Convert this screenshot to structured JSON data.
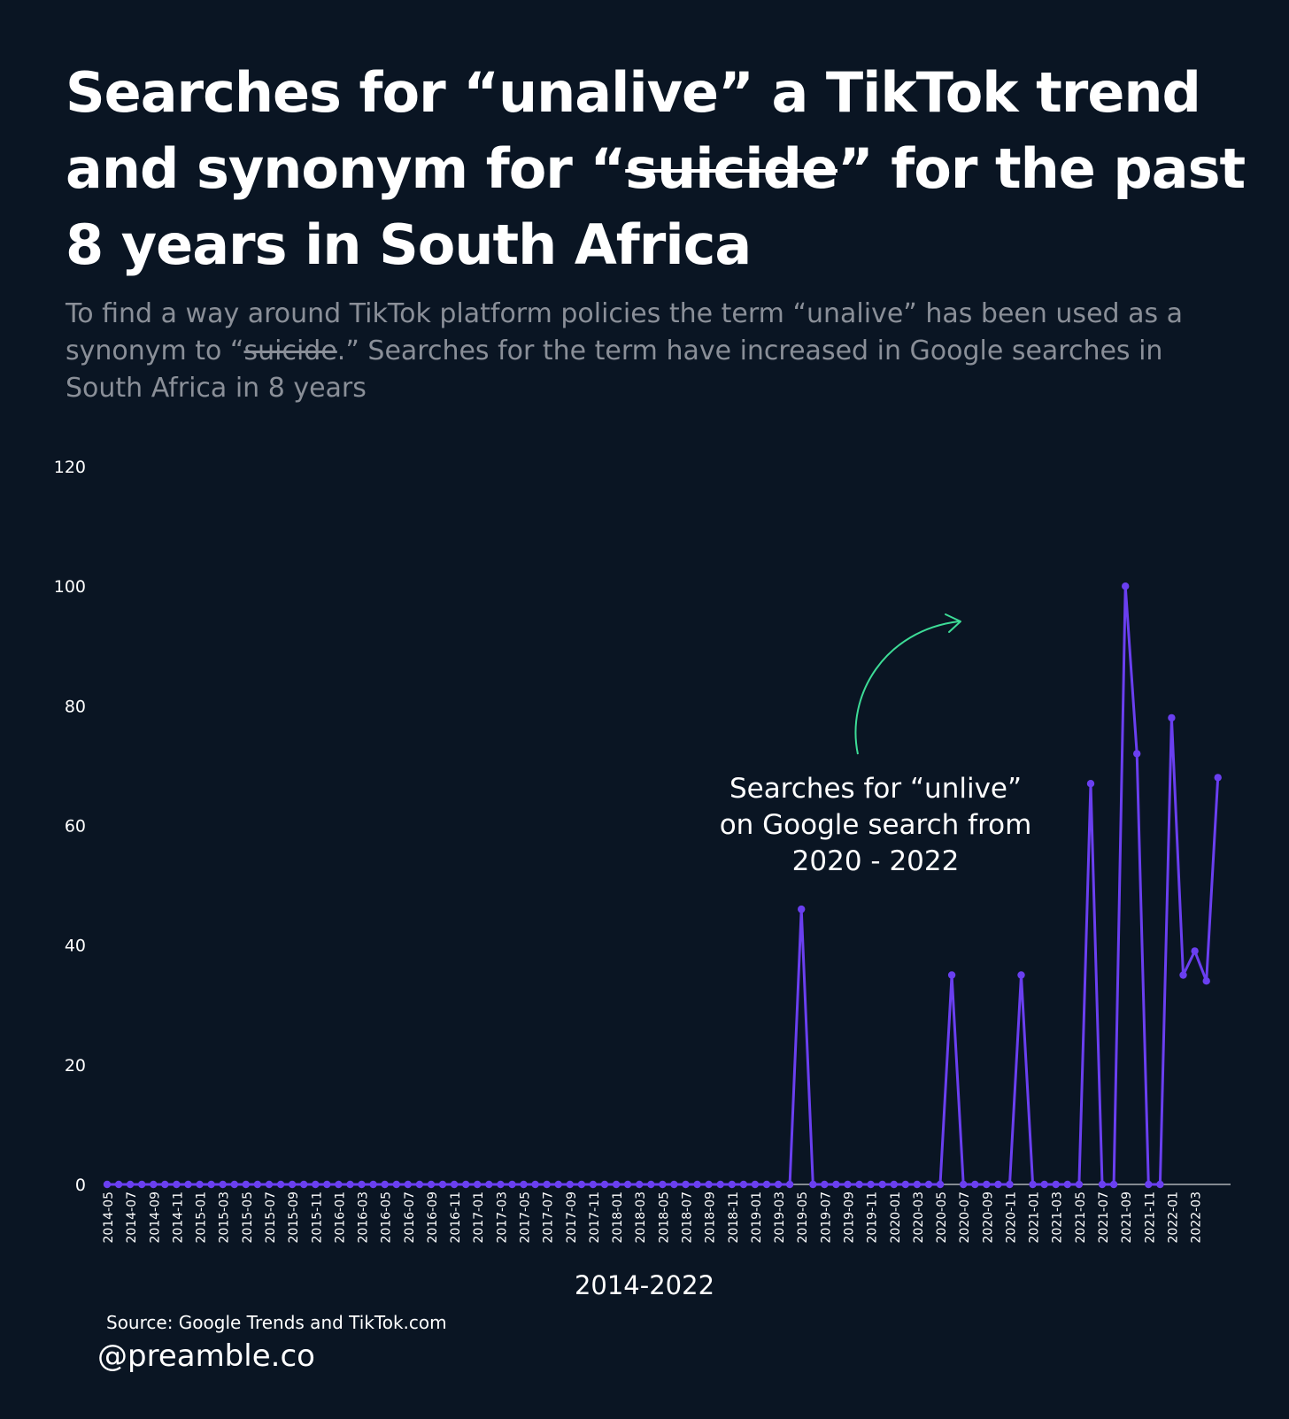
{
  "title": {
    "part1": "Searches for “unalive” a TikTok trend and synonym for “",
    "strike": "suicide",
    "part2": "” for the past 8 years in South Africa"
  },
  "subtitle": {
    "part1": "To find a way around TikTok platform policies the term “unalive” has been used as a synonym to “",
    "strike": "suicide",
    "part2": ".” Searches for the term have increased in Google searches in South Africa in 8 years"
  },
  "annotation": {
    "lines": [
      "Searches for “unlive”",
      "on Google search from",
      "2020 - 2022"
    ]
  },
  "source": "Source: Google Trends and TikTok.com",
  "handle": "@preamble.co",
  "colors": {
    "background": "#0a1523",
    "line": "#6a3ff0",
    "arrow": "#3ddc97",
    "text": "#ffffff",
    "subtitle": "#8a8f98"
  },
  "chart_data": {
    "type": "line",
    "title": "",
    "xlabel": "2014-2022",
    "ylabel": "",
    "ylim": [
      0,
      120
    ],
    "yticks": [
      0,
      20,
      40,
      60,
      80,
      100,
      120
    ],
    "start": "2014-05",
    "x_tick_labels": [
      "2014-05",
      "2014-07",
      "2014-09",
      "2014-11",
      "2015-01",
      "2015-03",
      "2015-05",
      "2015-07",
      "2015-09",
      "2015-11",
      "2016-01",
      "2016-03",
      "2016-05",
      "2016-07",
      "2016-09",
      "2016-11",
      "2017-01",
      "2017-03",
      "2017-05",
      "2017-07",
      "2017-09",
      "2017-11",
      "2018-01",
      "2018-03",
      "2018-05",
      "2018-07",
      "2018-09",
      "2018-11",
      "2019-01",
      "2019-03",
      "2019-05",
      "2019-07",
      "2019-09",
      "2019-11",
      "2020-01",
      "2020-03",
      "2020-05",
      "2020-07",
      "2020-09",
      "2020-11",
      "2021-01",
      "2021-03",
      "2021-05",
      "2021-07",
      "2021-09",
      "2021-11",
      "2022-01",
      "2022-03"
    ],
    "series": [
      {
        "name": "unalive",
        "values": [
          0,
          0,
          0,
          0,
          0,
          0,
          0,
          0,
          0,
          0,
          0,
          0,
          0,
          0,
          0,
          0,
          0,
          0,
          0,
          0,
          0,
          0,
          0,
          0,
          0,
          0,
          0,
          0,
          0,
          0,
          0,
          0,
          0,
          0,
          0,
          0,
          0,
          0,
          0,
          0,
          0,
          0,
          0,
          0,
          0,
          0,
          0,
          0,
          0,
          0,
          0,
          0,
          0,
          0,
          0,
          0,
          0,
          0,
          0,
          0,
          46,
          0,
          0,
          0,
          0,
          0,
          0,
          0,
          0,
          0,
          0,
          0,
          0,
          35,
          0,
          0,
          0,
          0,
          0,
          35,
          0,
          0,
          0,
          0,
          0,
          67,
          0,
          0,
          100,
          72,
          0,
          0,
          78,
          35,
          39,
          34,
          68
        ]
      }
    ]
  }
}
